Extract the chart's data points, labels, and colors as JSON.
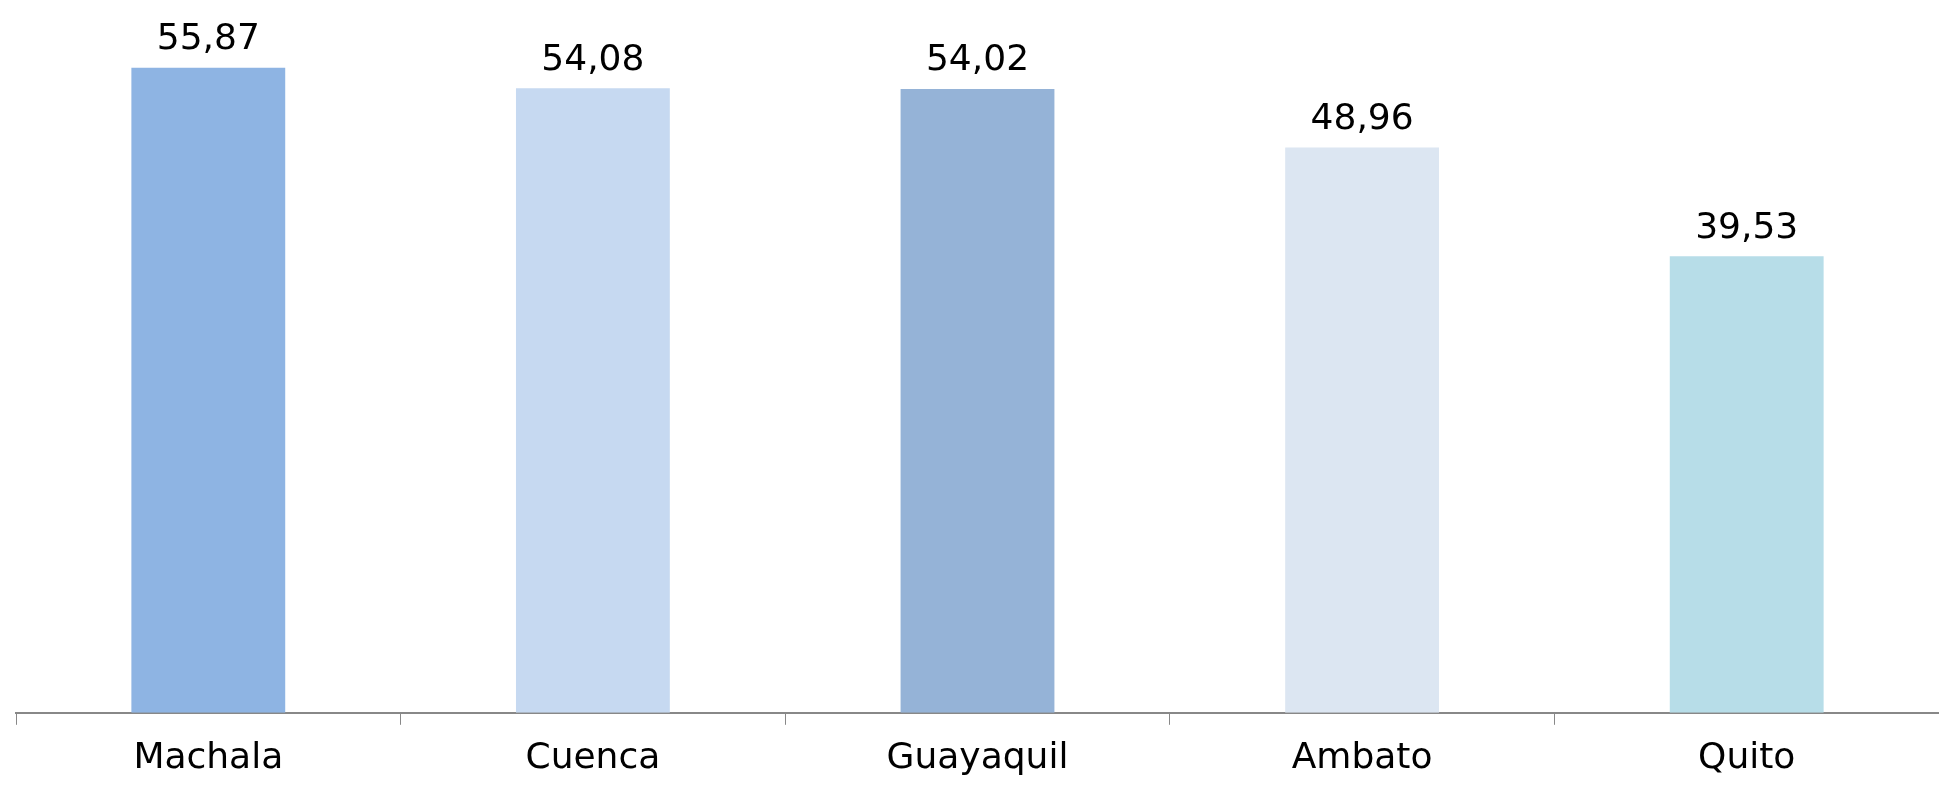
{
  "chart_data": {
    "type": "bar",
    "categories": [
      "Machala",
      "Cuenca",
      "Guayaquil",
      "Ambato",
      "Quito"
    ],
    "values": [
      55.87,
      54.08,
      54.02,
      48.96,
      39.53
    ],
    "colors": [
      "#8eb4e3",
      "#c6d9f1",
      "#95b3d7",
      "#dce6f2",
      "#b7dde8"
    ],
    "value_labels": [
      "55,87",
      "54,08",
      "54,02",
      "48,96",
      "39,53"
    ],
    "grid": false,
    "legend": false
  }
}
